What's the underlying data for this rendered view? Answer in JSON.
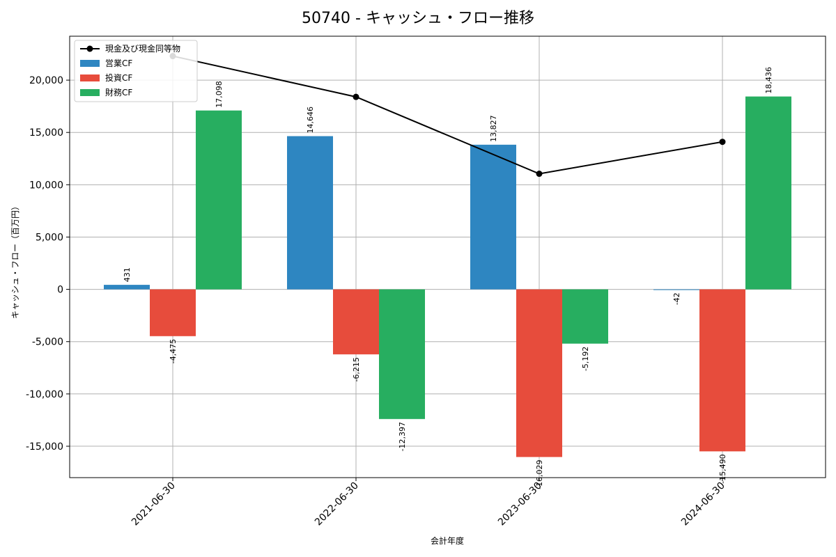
{
  "chart_data": {
    "type": "bar",
    "title": "50740 - キャッシュ・フロー推移",
    "xlabel": "会計年度",
    "ylabel": "キャッシュ・フロー（百万円）",
    "categories": [
      "2021-06-30",
      "2022-06-30",
      "2023-06-30",
      "2024-06-30"
    ],
    "ylim": [
      -18000,
      24200
    ],
    "yticks": [
      -15000,
      -10000,
      -5000,
      0,
      5000,
      10000,
      15000,
      20000
    ],
    "ytick_labels": [
      "-15,000",
      "-10,000",
      "-5,000",
      "0",
      "5,000",
      "10,000",
      "15,000",
      "20,000"
    ],
    "grid": true,
    "legend_position": "top-left",
    "series": [
      {
        "name": "営業CF",
        "kind": "bar",
        "color": "#2e86c1",
        "values": [
          431,
          14646,
          13827,
          -42
        ],
        "labels": [
          "431",
          "14,646",
          "13,827",
          "-42"
        ]
      },
      {
        "name": "投資CF",
        "kind": "bar",
        "color": "#e74c3c",
        "values": [
          -4475,
          -6215,
          -16029,
          -15490
        ],
        "labels": [
          "-4,475",
          "-6,215",
          "-16,029",
          "-15,490"
        ]
      },
      {
        "name": "財務CF",
        "kind": "bar",
        "color": "#27ae60",
        "values": [
          17098,
          -12397,
          -5192,
          18436
        ],
        "labels": [
          "17,098",
          "-12,397",
          "-5,192",
          "18,436"
        ]
      },
      {
        "name": "現金及び現金同等物",
        "kind": "line",
        "color": "#000000",
        "values": [
          22300,
          18400,
          11050,
          14100
        ]
      }
    ],
    "legend_order": [
      "現金及び現金同等物",
      "営業CF",
      "投資CF",
      "財務CF"
    ]
  }
}
